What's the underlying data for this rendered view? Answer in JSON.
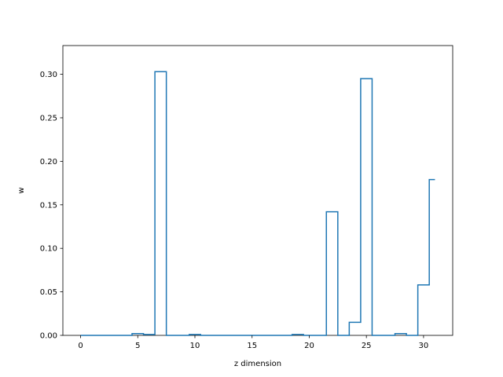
{
  "chart_data": {
    "type": "line",
    "drawstyle": "steps-mid",
    "title": "",
    "xlabel": "z dimension",
    "ylabel": "w",
    "xlim": [
      -1.55,
      32.55
    ],
    "ylim": [
      0,
      0.333
    ],
    "x_ticks": [
      0,
      5,
      10,
      15,
      20,
      25,
      30
    ],
    "y_ticks": [
      0.0,
      0.05,
      0.1,
      0.15,
      0.2,
      0.25,
      0.3
    ],
    "grid": false,
    "legend": "none",
    "series": [
      {
        "color": "#1f77b4",
        "x": [
          0,
          1,
          2,
          3,
          4,
          5,
          6,
          7,
          8,
          9,
          10,
          11,
          12,
          13,
          14,
          15,
          16,
          17,
          18,
          19,
          20,
          21,
          22,
          23,
          24,
          25,
          26,
          27,
          28,
          29,
          30,
          31
        ],
        "y": [
          0.0,
          0.0,
          0.0,
          0.0,
          0.0,
          0.002,
          0.001,
          0.303,
          0.0,
          0.0,
          0.001,
          0.0,
          0.0,
          0.0,
          0.0,
          0.0,
          0.0,
          0.0,
          0.0,
          0.001,
          0.0,
          0.0,
          0.142,
          0.0,
          0.015,
          0.295,
          0.0,
          0.0,
          0.002,
          0.0,
          0.058,
          0.179
        ]
      }
    ]
  }
}
